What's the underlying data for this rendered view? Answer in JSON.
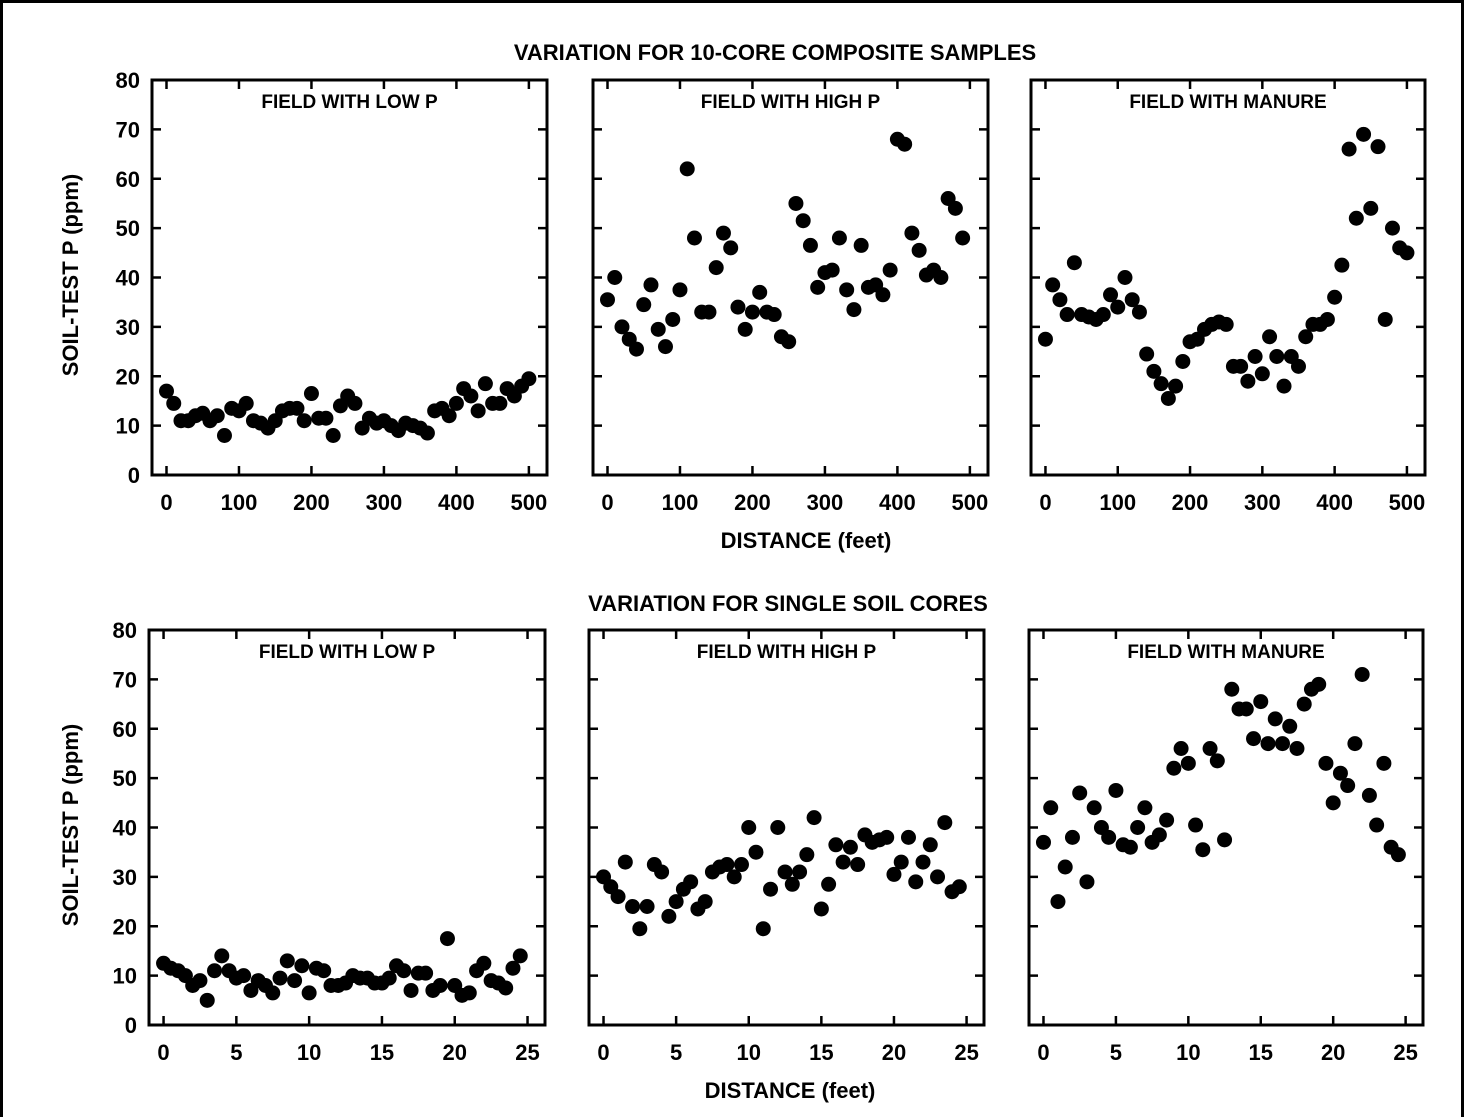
{
  "figure": {
    "top_title": "VARIATION FOR 10-CORE COMPOSITE SAMPLES",
    "bottom_title": "VARIATION FOR SINGLE SOIL CORES",
    "ylabel": "SOIL-TEST P (ppm)",
    "xlabel": "DISTANCE (feet)"
  },
  "chart_data": [
    {
      "type": "scatter",
      "title": "FIELD WITH LOW P",
      "xlabel": "",
      "ylabel": "SOIL-TEST P (ppm)",
      "xlim": [
        -20,
        525
      ],
      "ylim": [
        0,
        80
      ],
      "xticks": [
        0,
        100,
        200,
        300,
        400,
        500
      ],
      "yticks": [
        0,
        10,
        20,
        30,
        40,
        50,
        60,
        70,
        80
      ],
      "x": [
        0,
        10,
        20,
        30,
        40,
        50,
        60,
        70,
        80,
        90,
        100,
        110,
        120,
        130,
        140,
        150,
        160,
        170,
        180,
        190,
        200,
        210,
        220,
        230,
        240,
        250,
        260,
        270,
        280,
        290,
        300,
        310,
        320,
        330,
        340,
        350,
        360,
        370,
        380,
        390,
        400,
        410,
        420,
        430,
        440,
        450,
        460,
        470,
        480,
        490,
        500
      ],
      "y": [
        17,
        14.5,
        11,
        11,
        12,
        12.5,
        11,
        12,
        8,
        13.5,
        13,
        14.5,
        11,
        10.5,
        9.5,
        11,
        13,
        13.5,
        13.5,
        11,
        16.5,
        11.5,
        11.5,
        8,
        14,
        16,
        14.5,
        9.5,
        11.5,
        10.5,
        11,
        10,
        9,
        10.5,
        10,
        9.5,
        8.5,
        13,
        13.5,
        12,
        14.5,
        17.5,
        16,
        13,
        18.5,
        14.5,
        14.5,
        17.5,
        16,
        18,
        19.5
      ]
    },
    {
      "type": "scatter",
      "title": "FIELD WITH HIGH P",
      "xlabel": "DISTANCE (feet)",
      "ylabel": "",
      "xlim": [
        -20,
        525
      ],
      "ylim": [
        0,
        80
      ],
      "xticks": [
        0,
        100,
        200,
        300,
        400,
        500
      ],
      "yticks": [
        0,
        10,
        20,
        30,
        40,
        50,
        60,
        70,
        80
      ],
      "x": [
        0,
        10,
        20,
        30,
        40,
        50,
        60,
        70,
        80,
        90,
        100,
        110,
        120,
        130,
        140,
        150,
        160,
        170,
        180,
        190,
        200,
        210,
        220,
        230,
        240,
        250,
        260,
        270,
        280,
        290,
        300,
        310,
        320,
        330,
        340,
        350,
        360,
        370,
        380,
        390,
        400,
        410,
        420,
        430,
        440,
        450,
        460,
        470,
        480,
        490
      ],
      "y": [
        35.5,
        40,
        30,
        27.5,
        25.5,
        34.5,
        38.5,
        29.5,
        26,
        31.5,
        37.5,
        62,
        48,
        33,
        33,
        42,
        49,
        46,
        34,
        29.5,
        33,
        37,
        33,
        32.5,
        28,
        27,
        55,
        51.5,
        46.5,
        38,
        41,
        41.5,
        48,
        37.5,
        33.5,
        46.5,
        38,
        38.5,
        36.5,
        41.5,
        68,
        67,
        49,
        45.5,
        40.5,
        41.5,
        40,
        56,
        54,
        48
      ]
    },
    {
      "type": "scatter",
      "title": "FIELD WITH MANURE",
      "xlabel": "",
      "ylabel": "",
      "xlim": [
        -20,
        525
      ],
      "ylim": [
        0,
        80
      ],
      "xticks": [
        0,
        100,
        200,
        300,
        400,
        500
      ],
      "yticks": [
        0,
        10,
        20,
        30,
        40,
        50,
        60,
        70,
        80
      ],
      "x": [
        0,
        10,
        20,
        30,
        40,
        50,
        60,
        70,
        80,
        90,
        100,
        110,
        120,
        130,
        140,
        150,
        160,
        170,
        180,
        190,
        200,
        210,
        220,
        230,
        240,
        250,
        260,
        270,
        280,
        290,
        300,
        310,
        320,
        330,
        340,
        350,
        360,
        370,
        380,
        390,
        400,
        410,
        420,
        430,
        440,
        450,
        460,
        470,
        480,
        490,
        500
      ],
      "y": [
        27.5,
        38.5,
        35.5,
        32.5,
        43,
        32.5,
        32,
        31.5,
        32.5,
        36.5,
        34,
        40,
        35.5,
        33,
        24.5,
        21,
        18.5,
        15.5,
        18,
        23,
        27,
        27.5,
        29.5,
        30.5,
        31,
        30.5,
        22,
        22,
        19,
        24,
        20.5,
        28,
        24,
        18,
        24,
        22,
        28,
        30.5,
        30.5,
        31.5,
        36,
        42.5,
        66,
        52,
        69,
        54,
        66.5,
        31.5,
        50,
        46,
        45
      ]
    },
    {
      "type": "scatter",
      "title": "FIELD WITH LOW P",
      "xlabel": "",
      "ylabel": "SOIL-TEST P (ppm)",
      "xlim": [
        -1,
        26.2
      ],
      "ylim": [
        0,
        80
      ],
      "xticks": [
        0,
        5,
        10,
        15,
        20,
        25
      ],
      "yticks": [
        0,
        10,
        20,
        30,
        40,
        50,
        60,
        70,
        80
      ],
      "x": [
        0,
        0.5,
        1,
        1.5,
        2,
        2.5,
        3,
        3.5,
        4,
        4.5,
        5,
        5.5,
        6,
        6.5,
        7,
        7.5,
        8,
        8.5,
        9,
        9.5,
        10,
        10.5,
        11,
        11.5,
        12,
        12.5,
        13,
        13.5,
        14,
        14.5,
        15,
        15.5,
        16,
        16.5,
        17,
        17.5,
        18,
        18.5,
        19,
        19.5,
        20,
        20.5,
        21,
        21.5,
        22,
        22.5,
        23,
        23.5,
        24,
        24.5
      ],
      "y": [
        12.5,
        11.5,
        11,
        10,
        8,
        9,
        5,
        11,
        14,
        11,
        9.5,
        10,
        7,
        9,
        8,
        6.5,
        9.5,
        13,
        9,
        12,
        6.5,
        11.5,
        11,
        8,
        8,
        8.5,
        10,
        9.5,
        9.5,
        8.5,
        8.5,
        9.5,
        12,
        11,
        7,
        10.5,
        10.5,
        7,
        8,
        17.5,
        8,
        6,
        6.5,
        11,
        12.5,
        9,
        8.5,
        7.5,
        11.5,
        14
      ]
    },
    {
      "type": "scatter",
      "title": "FIELD WITH HIGH P",
      "xlabel": "DISTANCE (feet)",
      "ylabel": "",
      "xlim": [
        -1,
        26.2
      ],
      "ylim": [
        0,
        80
      ],
      "xticks": [
        0,
        5,
        10,
        15,
        20,
        25
      ],
      "yticks": [
        0,
        10,
        20,
        30,
        40,
        50,
        60,
        70,
        80
      ],
      "x": [
        0,
        0.5,
        1,
        1.5,
        2,
        2.5,
        3,
        3.5,
        4,
        4.5,
        5,
        5.5,
        6,
        6.5,
        7,
        7.5,
        8,
        8.5,
        9,
        9.5,
        10,
        10.5,
        11,
        11.5,
        12,
        12.5,
        13,
        13.5,
        14,
        14.5,
        15,
        15.5,
        16,
        16.5,
        17,
        17.5,
        18,
        18.5,
        19,
        19.5,
        20,
        20.5,
        21,
        21.5,
        22,
        22.5,
        23,
        23.5,
        24,
        24.5
      ],
      "y": [
        30,
        28,
        26,
        33,
        24,
        19.5,
        24,
        32.5,
        31,
        22,
        25,
        27.5,
        29,
        23.5,
        25,
        31,
        32,
        32.5,
        30,
        32.5,
        40,
        35,
        19.5,
        27.5,
        40,
        31,
        28.5,
        31,
        34.5,
        42,
        23.5,
        28.5,
        36.5,
        33,
        36,
        32.5,
        38.5,
        37,
        37.5,
        38,
        30.5,
        33,
        38,
        29,
        33,
        36.5,
        30,
        41,
        27,
        28
      ]
    },
    {
      "type": "scatter",
      "title": "FIELD WITH MANURE",
      "xlabel": "",
      "ylabel": "",
      "xlim": [
        -1,
        26.2
      ],
      "ylim": [
        0,
        80
      ],
      "xticks": [
        0,
        5,
        10,
        15,
        20,
        25
      ],
      "yticks": [
        0,
        10,
        20,
        30,
        40,
        50,
        60,
        70,
        80
      ],
      "x": [
        0,
        0.5,
        1,
        1.5,
        2,
        2.5,
        3,
        3.5,
        4,
        4.5,
        5,
        5.5,
        6,
        6.5,
        7,
        7.5,
        8,
        8.5,
        9,
        9.5,
        10,
        10.5,
        11,
        11.5,
        12,
        12.5,
        13,
        13.5,
        14,
        14.5,
        15,
        15.5,
        16,
        16.5,
        17,
        17.5,
        18,
        18.5,
        19,
        19.5,
        20,
        20.5,
        21,
        21.5,
        22,
        22.5,
        23,
        23.5,
        24,
        24.5
      ],
      "y": [
        37,
        44,
        25,
        32,
        38,
        47,
        29,
        44,
        40,
        38,
        47.5,
        36.5,
        36,
        40,
        44,
        37,
        38.5,
        41.5,
        52,
        56,
        53,
        40.5,
        35.5,
        56,
        53.5,
        37.5,
        68,
        64,
        64,
        58,
        65.5,
        57,
        62,
        57,
        60.5,
        56,
        65,
        68,
        69,
        53,
        45,
        51,
        48.5,
        57,
        71,
        46.5,
        40.5,
        53,
        36,
        34.5
      ]
    }
  ]
}
